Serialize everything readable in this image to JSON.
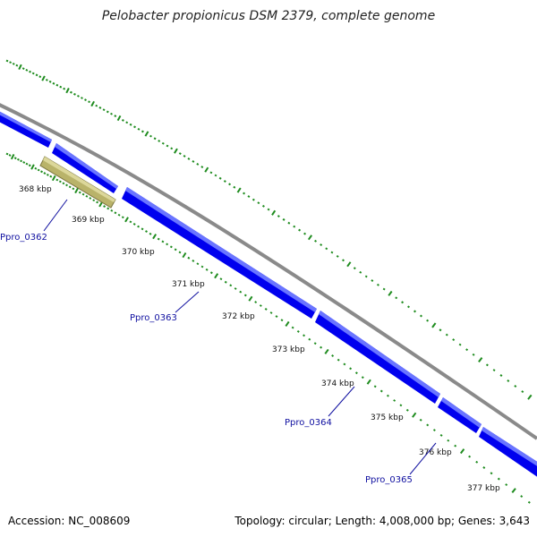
{
  "title": "Pelobacter propionicus DSM 2379, complete genome",
  "footer": {
    "accession": "Accession: NC_008609",
    "topology": "Topology: circular; Length: 4,008,000 bp; Genes: 3,643"
  },
  "colors": {
    "gene_forward": "#0000ee",
    "gene_highlight": "#6a75ff",
    "selected_gene": "#b9b36a",
    "backbone": "#8a8a8a",
    "gc_dots": "#1f8c1f",
    "gene_label": "#1010a0"
  },
  "scale_labels": [
    "368 kbp",
    "369 kbp",
    "370 kbp",
    "371 kbp",
    "372 kbp",
    "373 kbp",
    "374 kbp",
    "375 kbp",
    "376 kbp",
    "377 kbp"
  ],
  "genes": [
    {
      "label": "Ppro_0362"
    },
    {
      "label": "Ppro_0363"
    },
    {
      "label": "Ppro_0364"
    },
    {
      "label": "Ppro_0365"
    }
  ]
}
